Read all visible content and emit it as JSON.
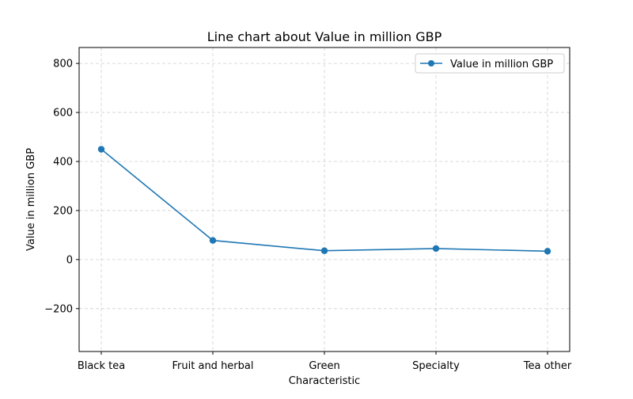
{
  "chart_data": {
    "type": "line",
    "title": "Line chart about Value in million GBP",
    "xlabel": "Characteristic",
    "ylabel": "Value in million GBP",
    "categories": [
      "Black tea",
      "Fruit and herbal",
      "Green",
      "Specialty",
      "Tea other"
    ],
    "series": [
      {
        "name": "Value in million GBP",
        "values": [
          450,
          78,
          36,
          45,
          34
        ],
        "color": "#1f77b4"
      }
    ],
    "yticks": [
      -200,
      0,
      200,
      400,
      600,
      800
    ],
    "ylim": [
      -375,
      865
    ],
    "grid": true,
    "legend_position": "top-right"
  }
}
